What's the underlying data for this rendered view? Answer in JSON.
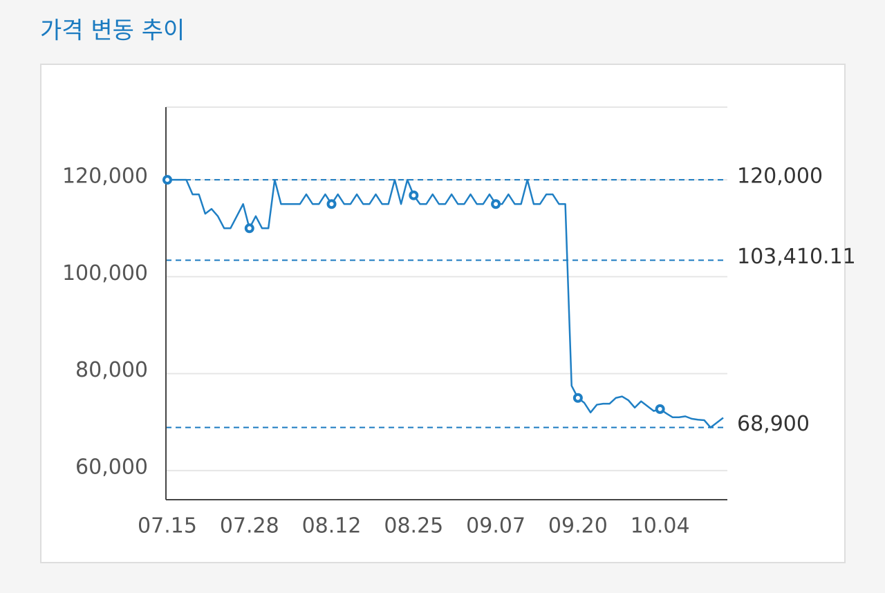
{
  "chart_data": {
    "type": "line",
    "title": "가격 변동 추이",
    "categories": [
      "07.15",
      null,
      null,
      null,
      null,
      null,
      null,
      null,
      null,
      null,
      null,
      null,
      null,
      "07.28",
      null,
      null,
      null,
      null,
      null,
      null,
      null,
      null,
      null,
      null,
      null,
      null,
      "08.12",
      null,
      null,
      null,
      null,
      null,
      null,
      null,
      null,
      null,
      null,
      null,
      null,
      "08.25",
      null,
      null,
      null,
      null,
      null,
      null,
      null,
      null,
      null,
      null,
      null,
      null,
      "09.07",
      null,
      null,
      null,
      null,
      null,
      null,
      null,
      null,
      null,
      null,
      null,
      null,
      "09.20",
      null,
      null,
      null,
      null,
      null,
      null,
      null,
      null,
      null,
      null,
      null,
      null,
      "10.04",
      null,
      null,
      null,
      null,
      null,
      null,
      null,
      null,
      null,
      null
    ],
    "series": [
      {
        "color": "#1f7fc4",
        "values": [
          120000,
          120000,
          120000,
          120000,
          117000,
          117000,
          113000,
          114000,
          112500,
          110000,
          110000,
          112500,
          115000,
          110000,
          112500,
          110000,
          110000,
          120000,
          115000,
          115000,
          115000,
          115000,
          117000,
          115000,
          115000,
          117000,
          115000,
          117000,
          115000,
          115000,
          117000,
          115000,
          115000,
          117000,
          115000,
          115000,
          120000,
          115000,
          120000,
          116800,
          115000,
          115000,
          117000,
          115000,
          115000,
          117000,
          115000,
          115000,
          117000,
          115000,
          115000,
          117000,
          115000,
          115000,
          117000,
          115000,
          115000,
          120000,
          115000,
          115000,
          117000,
          117000,
          115000,
          115000,
          77500,
          75000,
          74000,
          72000,
          73600,
          73800,
          73800,
          75000,
          75300,
          74500,
          73000,
          74300,
          73300,
          72300,
          72700,
          71800,
          71000,
          71000,
          71200,
          70700,
          70500,
          70400,
          68900,
          69900,
          70900
        ]
      }
    ],
    "ylim": [
      54000,
      135000
    ],
    "yticks": [
      {
        "value": 60000,
        "label": "60,000"
      },
      {
        "value": 80000,
        "label": "80,000"
      },
      {
        "value": 100000,
        "label": "100,000"
      },
      {
        "value": 120000,
        "label": "120,000"
      }
    ],
    "grid": true,
    "reference_lines": [
      {
        "value": 120000,
        "label": "120,000"
      },
      {
        "value": 103410.11,
        "label": "103,410.11"
      },
      {
        "value": 68900,
        "label": "68,900"
      }
    ]
  }
}
